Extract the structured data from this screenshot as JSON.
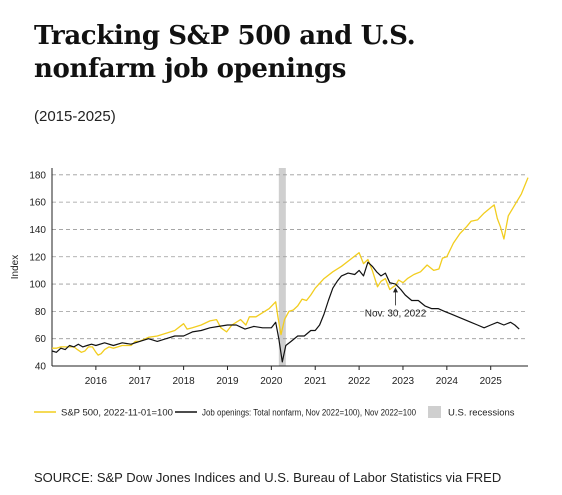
{
  "title": "Tracking S&P 500 and U.S. nonfarm job openings",
  "subtitle": "(2015-2025)",
  "source": "SOURCE: S&P Dow Jones Indices and U.S. Bureau of Labor Statistics via FRED",
  "chart_data": {
    "type": "line",
    "xlabel": "",
    "ylabel": "Index",
    "xlim": [
      2015.0,
      2025.85
    ],
    "ylim": [
      40,
      185
    ],
    "y_ticks": [
      40,
      60,
      80,
      100,
      120,
      140,
      160,
      180
    ],
    "x_ticks": [
      2016,
      2017,
      2018,
      2019,
      2020,
      2021,
      2022,
      2023,
      2024,
      2025
    ],
    "x_tick_labels": [
      "2016",
      "2017",
      "2018",
      "2019",
      "2020",
      "2021",
      "2022",
      "2023",
      "2024",
      "2025"
    ],
    "grid": "horizontal dashed",
    "recession": {
      "label": "U.S. recessions",
      "start": 2020.17,
      "end": 2020.33
    },
    "annotation": {
      "text": "Nov. 30, 2022",
      "x": 2022.83,
      "y": 99
    },
    "legend_position": "bottom",
    "series": [
      {
        "name": "S&P 500, 2022-11-01=100",
        "color": "#f2cd1f",
        "x": [
          2015.0,
          2015.1,
          2015.2,
          2015.3,
          2015.4,
          2015.5,
          2015.58,
          2015.67,
          2015.75,
          2015.83,
          2015.92,
          2016.0,
          2016.05,
          2016.12,
          2016.2,
          2016.3,
          2016.4,
          2016.5,
          2016.6,
          2016.7,
          2016.8,
          2016.9,
          2017.0,
          2017.2,
          2017.4,
          2017.6,
          2017.8,
          2018.0,
          2018.08,
          2018.2,
          2018.4,
          2018.6,
          2018.75,
          2018.85,
          2018.98,
          2019.1,
          2019.3,
          2019.42,
          2019.5,
          2019.65,
          2019.8,
          2019.95,
          2020.1,
          2020.15,
          2020.22,
          2020.3,
          2020.4,
          2020.5,
          2020.6,
          2020.7,
          2020.8,
          2020.9,
          2021.0,
          2021.2,
          2021.4,
          2021.6,
          2021.8,
          2022.0,
          2022.1,
          2022.2,
          2022.3,
          2022.42,
          2022.5,
          2022.6,
          2022.7,
          2022.78,
          2022.83,
          2022.9,
          2023.0,
          2023.1,
          2023.25,
          2023.4,
          2023.55,
          2023.7,
          2023.82,
          2023.9,
          2024.0,
          2024.15,
          2024.3,
          2024.45,
          2024.55,
          2024.7,
          2024.85,
          2025.0,
          2025.08,
          2025.15,
          2025.22,
          2025.3,
          2025.4,
          2025.55,
          2025.7,
          2025.85
        ],
        "y": [
          53,
          53,
          54,
          54,
          54,
          54,
          52,
          50,
          51,
          54,
          54,
          50,
          48,
          49,
          52,
          54,
          53,
          54,
          55,
          55,
          55,
          58,
          58,
          61,
          62,
          64,
          66,
          71,
          67,
          68,
          70,
          73,
          74,
          68,
          65,
          70,
          74,
          70,
          76,
          76,
          79,
          82,
          87,
          76,
          63,
          74,
          80,
          81,
          84,
          89,
          88,
          92,
          97,
          104,
          109,
          113,
          118,
          123,
          115,
          118,
          110,
          98,
          102,
          104,
          96,
          98,
          99,
          103,
          101,
          104,
          107,
          109,
          114,
          110,
          111,
          119,
          120,
          130,
          137,
          142,
          146,
          147,
          152,
          156,
          158,
          148,
          142,
          133,
          150,
          158,
          166,
          178
        ]
      },
      {
        "name": "Job openings: Total nonfarm, Nov 2022=100), Nov 2022=100",
        "color": "#111111",
        "x": [
          2015.0,
          2015.1,
          2015.2,
          2015.3,
          2015.4,
          2015.5,
          2015.6,
          2015.7,
          2015.8,
          2015.9,
          2016.0,
          2016.2,
          2016.4,
          2016.6,
          2016.8,
          2017.0,
          2017.2,
          2017.4,
          2017.6,
          2017.8,
          2018.0,
          2018.2,
          2018.4,
          2018.6,
          2018.8,
          2019.0,
          2019.2,
          2019.4,
          2019.6,
          2019.8,
          2020.0,
          2020.1,
          2020.17,
          2020.25,
          2020.33,
          2020.45,
          2020.6,
          2020.75,
          2020.9,
          2021.0,
          2021.1,
          2021.2,
          2021.3,
          2021.4,
          2021.5,
          2021.6,
          2021.75,
          2021.9,
          2022.0,
          2022.1,
          2022.2,
          2022.3,
          2022.4,
          2022.5,
          2022.6,
          2022.7,
          2022.83,
          2022.95,
          2023.05,
          2023.2,
          2023.35,
          2023.5,
          2023.65,
          2023.8,
          2023.95,
          2024.1,
          2024.25,
          2024.4,
          2024.55,
          2024.7,
          2024.85,
          2025.0,
          2025.15,
          2025.3,
          2025.45,
          2025.55,
          2025.65
        ],
        "y": [
          51,
          50,
          53,
          52,
          55,
          54,
          56,
          54,
          55,
          56,
          55,
          57,
          55,
          57,
          56,
          58,
          60,
          58,
          60,
          62,
          62,
          65,
          66,
          68,
          69,
          70,
          70,
          67,
          69,
          68,
          68,
          72,
          60,
          43,
          55,
          58,
          62,
          62,
          66,
          66,
          70,
          78,
          88,
          97,
          102,
          106,
          108,
          107,
          110,
          106,
          116,
          113,
          109,
          106,
          108,
          101,
          100,
          96,
          92,
          88,
          88,
          84,
          82,
          82,
          80,
          78,
          76,
          74,
          72,
          70,
          68,
          70,
          72,
          70,
          72,
          70,
          67
        ]
      }
    ]
  }
}
